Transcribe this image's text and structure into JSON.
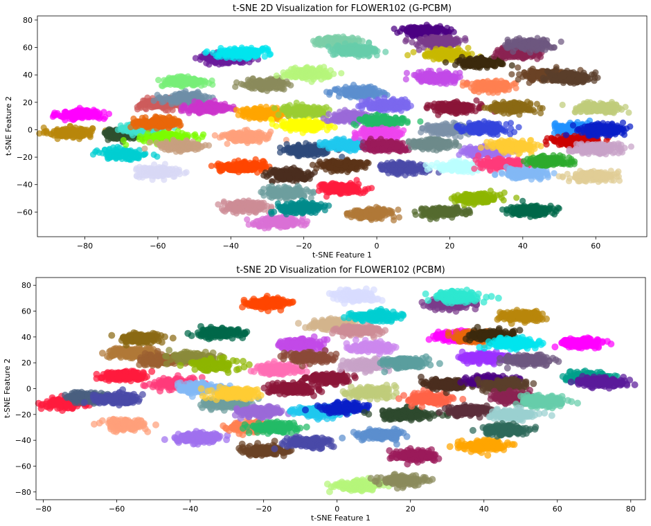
{
  "chart_data": [
    {
      "type": "scatter",
      "title": "t-SNE 2D Visualization for FLOWER102 (G-PCBM)",
      "xlabel": "t-SNE Feature 1",
      "ylabel": "t-SNE Feature 2",
      "xlim": [
        -93,
        74
      ],
      "ylim": [
        -78,
        83
      ],
      "xticks": [
        -80,
        -60,
        -40,
        -20,
        0,
        20,
        40,
        60
      ],
      "yticks": [
        -60,
        -40,
        -20,
        0,
        20,
        40,
        60,
        80
      ],
      "grid": false,
      "clusters": [
        {
          "x": -84,
          "y": -2,
          "color": "#b8860b"
        },
        {
          "x": -81,
          "y": 11,
          "color": "#ff00ff"
        },
        {
          "x": -69,
          "y": -18,
          "color": "#00ced1"
        },
        {
          "x": -69,
          "y": -3,
          "color": "#2f4f2f"
        },
        {
          "x": -64,
          "y": 1,
          "color": "#40e0d0"
        },
        {
          "x": -59,
          "y": 19,
          "color": "#cd5c5c"
        },
        {
          "x": -60,
          "y": 5,
          "color": "#e9660a"
        },
        {
          "x": -60,
          "y": -31,
          "color": "#d8d8f5"
        },
        {
          "x": -57,
          "y": -6,
          "color": "#7cfc00"
        },
        {
          "x": -54,
          "y": -12,
          "color": "#c8a080"
        },
        {
          "x": -53,
          "y": 35,
          "color": "#77ee77"
        },
        {
          "x": -52,
          "y": 23,
          "color": "#6f8fa8"
        },
        {
          "x": -46,
          "y": 16,
          "color": "#cc33cc"
        },
        {
          "x": -42,
          "y": 52,
          "color": "#6a1b9a"
        },
        {
          "x": -37,
          "y": 56,
          "color": "#00e5ee"
        },
        {
          "x": -36,
          "y": -5,
          "color": "#ffa07a"
        },
        {
          "x": -37,
          "y": -27,
          "color": "#ff4500"
        },
        {
          "x": -36,
          "y": -56,
          "color": "#cd8c95"
        },
        {
          "x": -30,
          "y": 33,
          "color": "#8b8b5c"
        },
        {
          "x": -31,
          "y": 12,
          "color": "#ffa500"
        },
        {
          "x": -27,
          "y": -67,
          "color": "#da70d6"
        },
        {
          "x": -24,
          "y": -33,
          "color": "#4b2e1e"
        },
        {
          "x": -25,
          "y": -46,
          "color": "#6e9e9e"
        },
        {
          "x": -19,
          "y": 41,
          "color": "#b6f57a"
        },
        {
          "x": -20,
          "y": 14,
          "color": "#9acd32"
        },
        {
          "x": -20,
          "y": 3,
          "color": "#ffff00"
        },
        {
          "x": -19,
          "y": -15,
          "color": "#2e4a7a"
        },
        {
          "x": -21,
          "y": -57,
          "color": "#008b8b"
        },
        {
          "x": -11,
          "y": 64,
          "color": "#7ccfa8"
        },
        {
          "x": -6,
          "y": 58,
          "color": "#66cdaa"
        },
        {
          "x": -10,
          "y": -26,
          "color": "#5c3317"
        },
        {
          "x": -10,
          "y": -43,
          "color": "#ff1a3d"
        },
        {
          "x": -5,
          "y": 27,
          "color": "#5b8fcf"
        },
        {
          "x": -7,
          "y": 9,
          "color": "#9a6ad8"
        },
        {
          "x": -8,
          "y": -11,
          "color": "#1ec8ee"
        },
        {
          "x": 1,
          "y": 6,
          "color": "#22bb66"
        },
        {
          "x": 1,
          "y": -3,
          "color": "#ee44ee"
        },
        {
          "x": -2,
          "y": -61,
          "color": "#b07838"
        },
        {
          "x": 2,
          "y": -12,
          "color": "#9b1b5a"
        },
        {
          "x": 3,
          "y": 18,
          "color": "#7b68ee"
        },
        {
          "x": 7,
          "y": -28,
          "color": "#4a4aa8"
        },
        {
          "x": 13,
          "y": 72,
          "color": "#4b0082"
        },
        {
          "x": 17,
          "y": 64,
          "color": "#7a3b8b"
        },
        {
          "x": 19,
          "y": 55,
          "color": "#c7b800"
        },
        {
          "x": 16,
          "y": 38,
          "color": "#c24ae8"
        },
        {
          "x": 15,
          "y": -10,
          "color": "#6e8b8b"
        },
        {
          "x": 21,
          "y": 16,
          "color": "#8b1538"
        },
        {
          "x": 19,
          "y": 0,
          "color": "#7c90a8"
        },
        {
          "x": 22,
          "y": -27,
          "color": "#bbffff"
        },
        {
          "x": 18,
          "y": -60,
          "color": "#556b2f"
        },
        {
          "x": 27,
          "y": -50,
          "color": "#8db600"
        },
        {
          "x": 28,
          "y": 49,
          "color": "#3c2a0c"
        },
        {
          "x": 31,
          "y": 32,
          "color": "#ff7f50"
        },
        {
          "x": 29,
          "y": 1,
          "color": "#3344dd"
        },
        {
          "x": 30,
          "y": -16,
          "color": "#a070ee"
        },
        {
          "x": 34,
          "y": -25,
          "color": "#ff3a7a"
        },
        {
          "x": 39,
          "y": 56,
          "color": "#8b2252"
        },
        {
          "x": 42,
          "y": 62,
          "color": "#6e5880"
        },
        {
          "x": 37,
          "y": 16,
          "color": "#8b6914"
        },
        {
          "x": 37,
          "y": -12,
          "color": "#ffcc33"
        },
        {
          "x": 41,
          "y": -32,
          "color": "#82b8f5"
        },
        {
          "x": 42,
          "y": -59,
          "color": "#00684a"
        },
        {
          "x": 46,
          "y": 40,
          "color": "#6b4226"
        },
        {
          "x": 47,
          "y": -23,
          "color": "#2eaa2e"
        },
        {
          "x": 53,
          "y": 38,
          "color": "#5a3e2b"
        },
        {
          "x": 55,
          "y": 1,
          "color": "#1e90ff"
        },
        {
          "x": 54,
          "y": -8,
          "color": "#cc0000"
        },
        {
          "x": 60,
          "y": 16,
          "color": "#bfcc7a"
        },
        {
          "x": 62,
          "y": 0,
          "color": "#0a1ec8"
        },
        {
          "x": 60,
          "y": -14,
          "color": "#c8a2c8"
        },
        {
          "x": 59,
          "y": -34,
          "color": "#e0cd95"
        }
      ]
    },
    {
      "type": "scatter",
      "title": "t-SNE 2D Visualization for FLOWER102 (PCBM)",
      "xlabel": "t-SNE Feature 1",
      "ylabel": "t-SNE Feature 2",
      "xlim": [
        -82,
        84
      ],
      "ylim": [
        -86,
        86
      ],
      "xticks": [
        -80,
        -60,
        -40,
        -20,
        0,
        20,
        40,
        60,
        80
      ],
      "yticks": [
        -80,
        -60,
        -40,
        -20,
        0,
        20,
        40,
        60,
        80
      ],
      "grid": false,
      "clusters": [
        {
          "x": -74,
          "y": -11,
          "color": "#ff1a3d"
        },
        {
          "x": -68,
          "y": -7,
          "color": "#4a6080"
        },
        {
          "x": -60,
          "y": -8,
          "color": "#4a4aa8"
        },
        {
          "x": -58,
          "y": -28,
          "color": "#ffa07a"
        },
        {
          "x": -58,
          "y": 10,
          "color": "#ff1a3d"
        },
        {
          "x": -56,
          "y": 28,
          "color": "#b07838"
        },
        {
          "x": -54,
          "y": 39,
          "color": "#8b6914"
        },
        {
          "x": -48,
          "y": 22,
          "color": "#9b6030"
        },
        {
          "x": -44,
          "y": 4,
          "color": "#ff3a7a"
        },
        {
          "x": -40,
          "y": 24,
          "color": "#8b8b3a"
        },
        {
          "x": -38,
          "y": -38,
          "color": "#a070ee"
        },
        {
          "x": -37,
          "y": 0,
          "color": "#82b8f5"
        },
        {
          "x": -34,
          "y": 18,
          "color": "#8db600"
        },
        {
          "x": -32,
          "y": 43,
          "color": "#00684a"
        },
        {
          "x": -30,
          "y": -12,
          "color": "#6e9e9e"
        },
        {
          "x": -28,
          "y": -4,
          "color": "#ffcc33"
        },
        {
          "x": -19,
          "y": 66,
          "color": "#ff4500"
        },
        {
          "x": -24,
          "y": -30,
          "color": "#ff7f50"
        },
        {
          "x": -21,
          "y": -18,
          "color": "#9a6ad8"
        },
        {
          "x": -17,
          "y": -30,
          "color": "#22bb66"
        },
        {
          "x": -20,
          "y": -48,
          "color": "#6b4226"
        },
        {
          "x": -16,
          "y": 15,
          "color": "#ff6eb4"
        },
        {
          "x": -12,
          "y": 0,
          "color": "#8b1538"
        },
        {
          "x": -10,
          "y": 34,
          "color": "#c24ae8"
        },
        {
          "x": -8,
          "y": 24,
          "color": "#8b4a38"
        },
        {
          "x": -6,
          "y": -18,
          "color": "#1ec8ee"
        },
        {
          "x": -8,
          "y": -42,
          "color": "#4a4aa8"
        },
        {
          "x": -2,
          "y": 8,
          "color": "#8b1538"
        },
        {
          "x": -1,
          "y": 50,
          "color": "#d2b48c"
        },
        {
          "x": 2,
          "y": -15,
          "color": "#0a1ec8"
        },
        {
          "x": 5,
          "y": 72,
          "color": "#d8ddff"
        },
        {
          "x": 6,
          "y": 45,
          "color": "#cd8c95"
        },
        {
          "x": 9,
          "y": -3,
          "color": "#bfcc7a"
        },
        {
          "x": 8,
          "y": 18,
          "color": "#c8a2c8"
        },
        {
          "x": 11,
          "y": 56,
          "color": "#00ced1"
        },
        {
          "x": 6,
          "y": -75,
          "color": "#b6f57a"
        },
        {
          "x": 10,
          "y": 32,
          "color": "#cc88ee"
        },
        {
          "x": 12,
          "y": -36,
          "color": "#5b8fcf"
        },
        {
          "x": 18,
          "y": -71,
          "color": "#8b8b5c"
        },
        {
          "x": 21,
          "y": -52,
          "color": "#9b1b5a"
        },
        {
          "x": 19,
          "y": -20,
          "color": "#2e4a2e"
        },
        {
          "x": 18,
          "y": 20,
          "color": "#5a9e9e"
        },
        {
          "x": 25,
          "y": -8,
          "color": "#ff6347"
        },
        {
          "x": 30,
          "y": 3,
          "color": "#4b2e1e"
        },
        {
          "x": 31,
          "y": 66,
          "color": "#7a3b8b"
        },
        {
          "x": 33,
          "y": 71,
          "color": "#2ee8d0"
        },
        {
          "x": 33,
          "y": 40,
          "color": "#ff00ff"
        },
        {
          "x": 38,
          "y": 40,
          "color": "#e9660a"
        },
        {
          "x": 42,
          "y": 41,
          "color": "#3c2a0c"
        },
        {
          "x": 36,
          "y": -17,
          "color": "#5c2e3a"
        },
        {
          "x": 40,
          "y": -44,
          "color": "#ffa500"
        },
        {
          "x": 40,
          "y": 24,
          "color": "#9b30ff"
        },
        {
          "x": 42,
          "y": 6,
          "color": "#4b0082"
        },
        {
          "x": 45,
          "y": 3,
          "color": "#5a3e2b"
        },
        {
          "x": 48,
          "y": 35,
          "color": "#00e5ee"
        },
        {
          "x": 50,
          "y": 56,
          "color": "#b8860b"
        },
        {
          "x": 52,
          "y": 22,
          "color": "#6e5880"
        },
        {
          "x": 48,
          "y": -7,
          "color": "#8b2252"
        },
        {
          "x": 56,
          "y": -10,
          "color": "#66cdaa"
        },
        {
          "x": 66,
          "y": 35,
          "color": "#ff00ff"
        },
        {
          "x": 68,
          "y": 9,
          "color": "#00a08a"
        },
        {
          "x": 72,
          "y": 5,
          "color": "#5a1a9a"
        },
        {
          "x": 48,
          "y": -20,
          "color": "#9ad0d0"
        },
        {
          "x": 46,
          "y": -32,
          "color": "#2e6a5a"
        }
      ]
    }
  ]
}
